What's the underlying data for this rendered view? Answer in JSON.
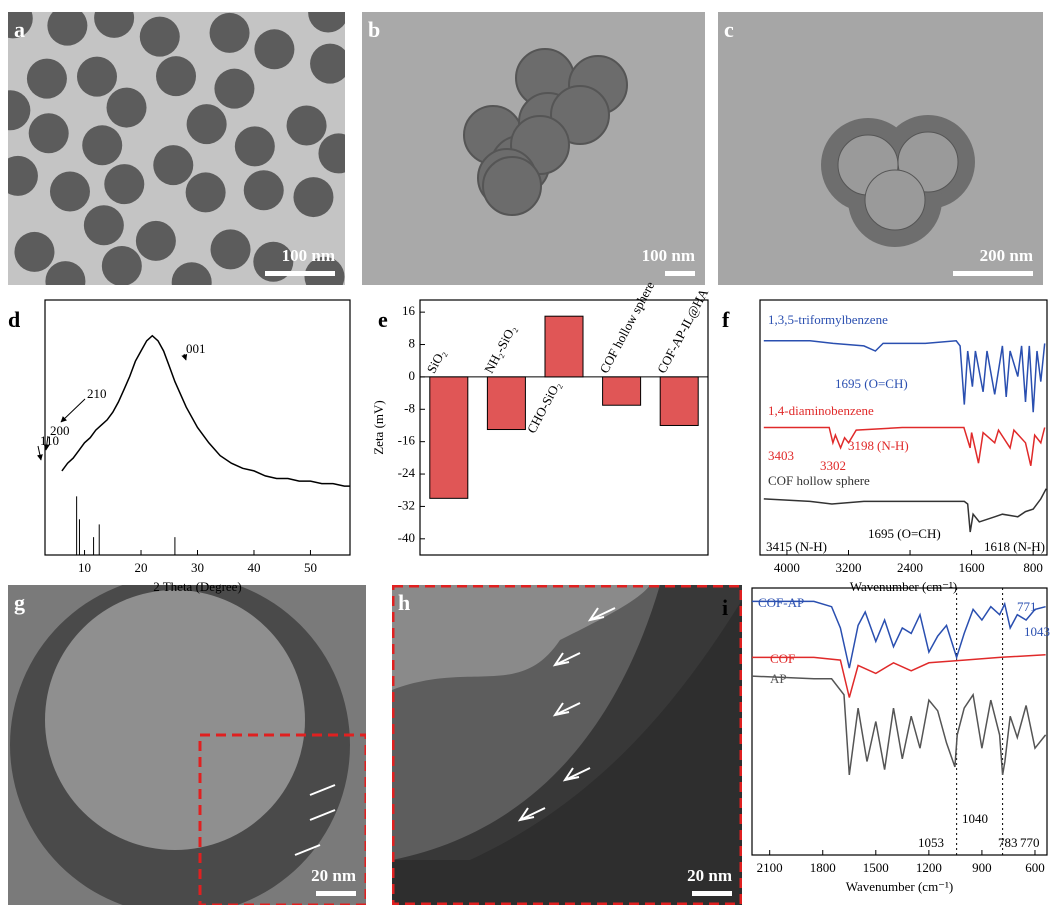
{
  "image_panels": [
    {
      "label": "a",
      "scale_bar": "100 nm"
    },
    {
      "label": "b",
      "scale_bar": "100 nm"
    },
    {
      "label": "c",
      "scale_bar": "200 nm"
    },
    {
      "label": "g",
      "scale_bar": "20 nm"
    },
    {
      "label": "h",
      "scale_bar": "20 nm"
    }
  ],
  "chart_data": [
    {
      "type": "line",
      "label": "d",
      "xlabel": "2 Theta (Degree)",
      "xlim": [
        3,
        57
      ],
      "xticks": [
        10,
        20,
        30,
        40,
        50
      ],
      "ylim": [
        0,
        100
      ],
      "series": [
        {
          "color": "#000000",
          "x": [
            6,
            7,
            8,
            9,
            10,
            11,
            12,
            13,
            14,
            15,
            16,
            17,
            18,
            19,
            20,
            21,
            22,
            23,
            24,
            25,
            26,
            27,
            28,
            30,
            32,
            34,
            36,
            38,
            40,
            42,
            44,
            46,
            48,
            50,
            52,
            54,
            56,
            57
          ],
          "values": [
            33,
            36,
            38,
            41,
            44,
            46,
            49,
            51,
            53,
            56,
            60,
            65,
            70,
            76,
            80,
            84,
            86,
            84,
            80,
            74,
            68,
            63,
            58,
            50,
            44,
            39,
            36,
            34,
            33,
            31,
            30,
            30,
            29,
            29,
            28,
            28,
            27,
            27
          ]
        }
      ],
      "reference_peaks": {
        "x": [
          8.6,
          9.1,
          11.6,
          12.6,
          26
        ],
        "values": [
          23,
          14,
          7,
          12,
          7
        ]
      },
      "annotations": [
        "001",
        "210",
        "200",
        "110"
      ]
    },
    {
      "type": "bar",
      "label": "e",
      "ylabel": "Zeta (mV)",
      "categories": [
        "SiO₂",
        "NH₂-SiO₂",
        "CHO-SiO₂",
        "COF hollow sphere",
        "COF-AP-IL@HA"
      ],
      "values": [
        -30,
        -13,
        15,
        -7,
        -12
      ],
      "color": "#e05656",
      "ylim": [
        -44,
        19
      ],
      "yticks": [
        16,
        8,
        0,
        -8,
        -16,
        -24,
        -32,
        -40
      ]
    },
    {
      "type": "line",
      "label": "f",
      "xlabel": "Wavenumber (cm⁻¹)",
      "xlim": [
        4350,
        620
      ],
      "xticks": [
        4000,
        3200,
        2400,
        1600,
        800
      ],
      "ylim": [
        0,
        100
      ],
      "series": [
        {
          "name": "1,3,5-triformylbenzene",
          "color": "#2a4fb0",
          "x": [
            4300,
            3700,
            3400,
            3000,
            2850,
            2750,
            2200,
            1800,
            1750,
            1695,
            1650,
            1590,
            1550,
            1450,
            1400,
            1300,
            1200,
            1150,
            1100,
            1000,
            950,
            900,
            850,
            800,
            750,
            700,
            650
          ],
          "values": [
            84,
            84,
            83,
            82,
            80,
            83,
            83,
            84,
            82,
            59,
            80,
            66,
            80,
            64,
            80,
            63,
            82,
            62,
            80,
            70,
            82,
            60,
            82,
            56,
            80,
            68,
            83
          ]
        },
        {
          "name": "1,4-diaminobenzene",
          "color": "#e02a2a",
          "x": [
            4300,
            3700,
            3450,
            3403,
            3370,
            3302,
            3250,
            3198,
            3100,
            2500,
            1700,
            1620,
            1600,
            1510,
            1450,
            1300,
            1250,
            1100,
            1050,
            900,
            830,
            780,
            700,
            650
          ],
          "values": [
            50,
            50,
            50,
            44,
            47,
            42,
            46,
            44,
            49,
            50,
            50,
            42,
            48,
            36,
            48,
            44,
            49,
            42,
            49,
            44,
            35,
            47,
            44,
            50
          ]
        },
        {
          "name": "COF hollow sphere",
          "color": "#333333",
          "x": [
            4300,
            3700,
            3415,
            3000,
            2000,
            1695,
            1650,
            1618,
            1580,
            1500,
            1300,
            1200,
            1000,
            900,
            800,
            700,
            630
          ],
          "values": [
            22,
            21,
            20,
            21,
            21,
            21,
            20,
            9,
            16,
            13,
            15,
            16,
            15,
            17,
            18,
            22,
            26
          ]
        }
      ],
      "annotations": [
        "1695 (O=CH)",
        "3403",
        "3302",
        "3198",
        "(N-H)",
        "3415 (N-H)",
        "1695 (O=CH)",
        "1618 (N-H)"
      ]
    },
    {
      "type": "line",
      "label": "i",
      "xlabel": "Wavenumber (cm⁻¹)",
      "xlim": [
        2200,
        532
      ],
      "xticks": [
        2100,
        1800,
        1500,
        1200,
        900,
        600
      ],
      "ylim": [
        0,
        100
      ],
      "series": [
        {
          "name": "COF-AP",
          "color": "#2a4fb0",
          "x": [
            2200,
            1850,
            1750,
            1700,
            1650,
            1600,
            1560,
            1500,
            1450,
            1400,
            1350,
            1300,
            1250,
            1200,
            1150,
            1100,
            1043,
            1000,
            950,
            900,
            850,
            800,
            771,
            740,
            700,
            650,
            600,
            540
          ],
          "values": [
            95,
            95,
            93,
            85,
            70,
            86,
            91,
            80,
            88,
            78,
            85,
            83,
            90,
            76,
            82,
            86,
            74,
            83,
            92,
            88,
            93,
            90,
            94,
            85,
            90,
            88,
            92,
            93
          ]
        },
        {
          "name": "COF",
          "color": "#e02a2a",
          "x": [
            2200,
            1850,
            1700,
            1650,
            1600,
            1500,
            1400,
            1300,
            1200,
            1000,
            800,
            540
          ],
          "values": [
            74,
            74,
            73,
            59,
            71,
            68,
            72,
            69,
            72,
            73,
            74,
            75
          ]
        },
        {
          "name": "AP",
          "color": "#555555",
          "x": [
            2200,
            1850,
            1750,
            1680,
            1650,
            1600,
            1550,
            1500,
            1450,
            1400,
            1350,
            1300,
            1250,
            1200,
            1150,
            1100,
            1053,
            1040,
            1000,
            950,
            900,
            850,
            800,
            783,
            770,
            740,
            700,
            650,
            600,
            540
          ],
          "values": [
            67,
            66,
            66,
            60,
            30,
            55,
            35,
            50,
            32,
            55,
            36,
            52,
            40,
            58,
            54,
            42,
            33,
            45,
            55,
            60,
            40,
            58,
            45,
            30,
            35,
            52,
            44,
            56,
            40,
            45
          ]
        }
      ],
      "reference_lines": [
        1043,
        783
      ],
      "annotations": [
        "1043",
        "771",
        "1053",
        "1040",
        "783",
        "770"
      ]
    }
  ]
}
